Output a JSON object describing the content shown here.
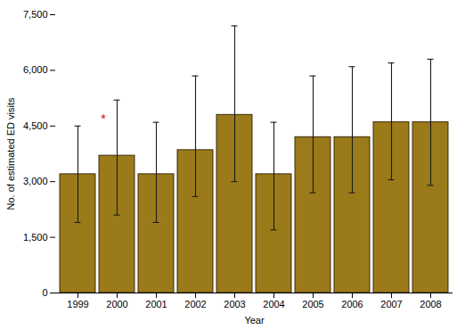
{
  "chart_data": {
    "type": "bar",
    "xlabel": "Year",
    "ylabel": "No. of estimated ED visits",
    "categories": [
      "1999",
      "2000",
      "2001",
      "2002",
      "2003",
      "2004",
      "2005",
      "2006",
      "2007",
      "2008"
    ],
    "values": [
      3200,
      3700,
      3200,
      3850,
      4800,
      3200,
      4200,
      4200,
      4600,
      4600
    ],
    "ci_lower": [
      1900,
      2100,
      1900,
      2600,
      3000,
      1700,
      2700,
      2700,
      3050,
      2900
    ],
    "ci_upper": [
      4500,
      5200,
      4600,
      5850,
      7200,
      4600,
      5850,
      6100,
      6200,
      6300
    ],
    "color": "#9B7A1A",
    "ylim": [
      0,
      7500
    ],
    "yticks": [
      0,
      {
        "value": 1500,
        "label": "1,500"
      },
      {
        "value": 3000,
        "label": "3,000"
      },
      {
        "value": 4500,
        "label": "4,500"
      },
      {
        "value": 6000,
        "label": "6,000"
      },
      {
        "value": 7500,
        "label": "7,500"
      }
    ],
    "grid": false,
    "annotations": [
      {
        "text": "*",
        "category": "2000",
        "y": 4580,
        "color": "#cc0000"
      }
    ]
  }
}
